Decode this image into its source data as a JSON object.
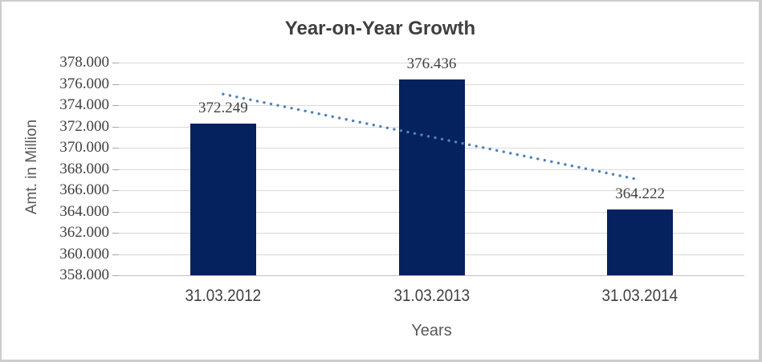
{
  "chart_data": {
    "type": "bar",
    "title": "Year-on-Year Growth",
    "xlabel": "Years",
    "ylabel": "Amt. in Million",
    "categories": [
      "31.03.2012",
      "31.03.2013",
      "31.03.2014"
    ],
    "values": [
      372.249,
      376.436,
      364.222
    ],
    "data_labels": [
      "372.249",
      "376.436",
      "364.222"
    ],
    "ylim": [
      358,
      378
    ],
    "ytick_step": 2,
    "ytick_labels": [
      "358.000",
      "360.000",
      "362.000",
      "364.000",
      "366.000",
      "368.000",
      "370.000",
      "372.000",
      "374.000",
      "376.000",
      "378.000"
    ],
    "grid": true,
    "legend": "none",
    "trendline": {
      "type": "linear",
      "style": "dotted",
      "start_value": 375.04,
      "end_value": 366.97
    },
    "colors": {
      "bar": "#05215E",
      "trendline": "#4F81BD",
      "gridline": "#D9D9D9",
      "axis_line": "#BFBFBF",
      "tick_mark": "#A6A6A6",
      "title_text": "#3F3F3F",
      "value_text": "#404040",
      "category_text": "#3F3F3F",
      "axis_title_text": "#595959",
      "frame_border": "#CDCDCD",
      "background": "#FFFFFF"
    }
  }
}
